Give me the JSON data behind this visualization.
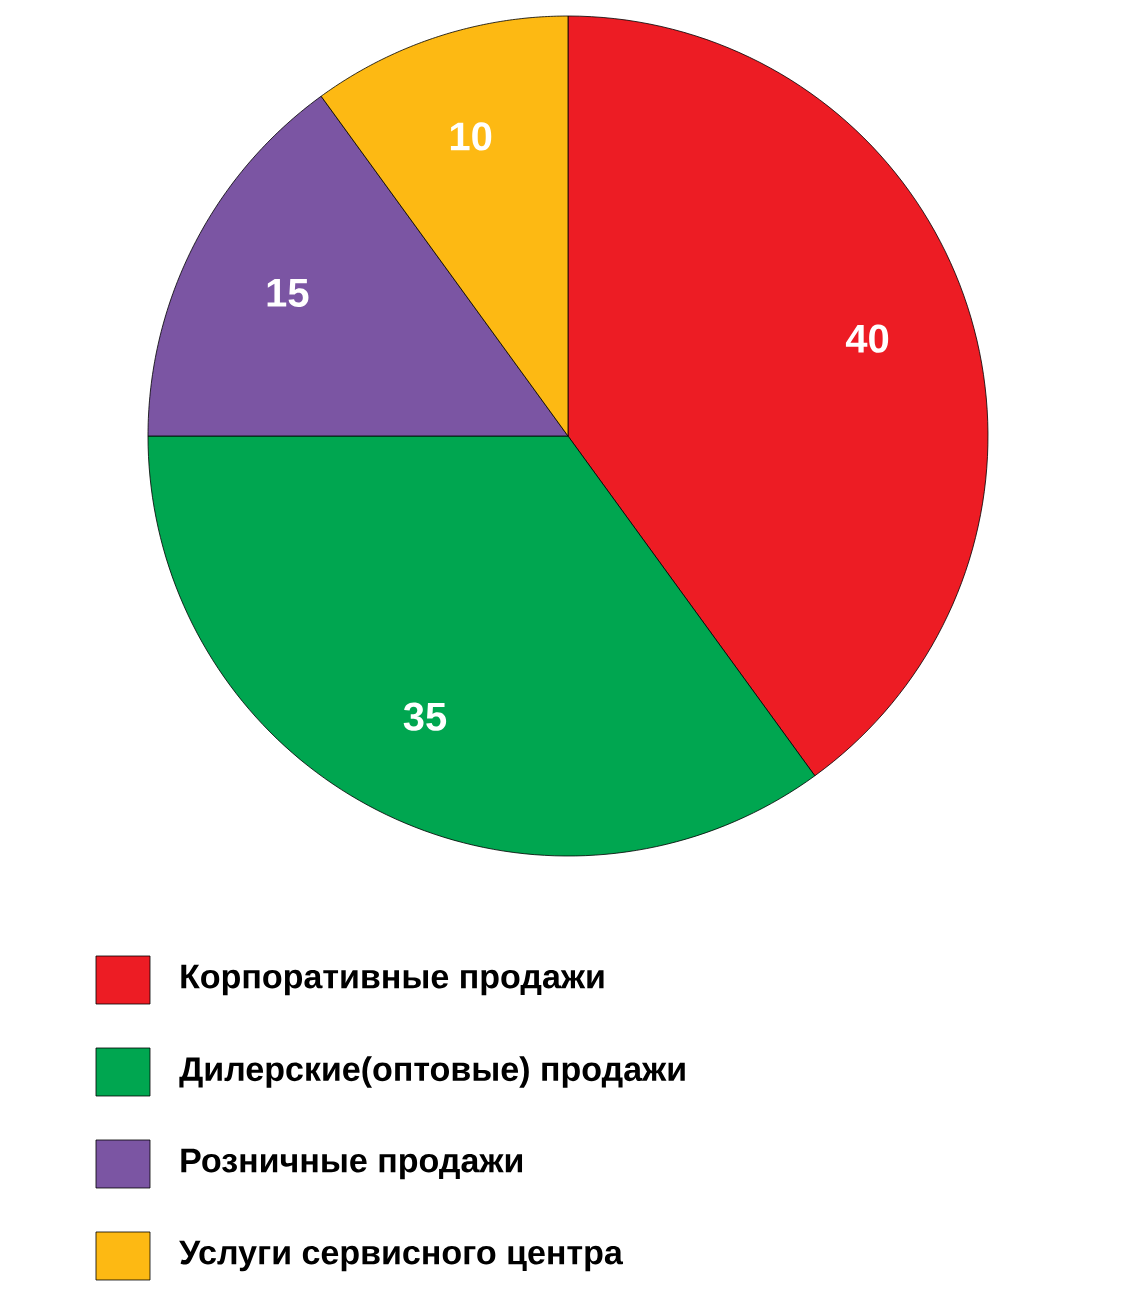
{
  "chart_data": {
    "type": "pie",
    "categories": [
      "Корпоративные продажи",
      "Дилерские(оптовые) продажи",
      "Розничные продажи",
      "Услуги сервисного центра"
    ],
    "values": [
      40,
      35,
      15,
      10
    ],
    "colors": [
      "#ed1c24",
      "#00a650",
      "#7b55a3",
      "#fdb913"
    ],
    "data_labels": true,
    "legend": "bottom"
  }
}
